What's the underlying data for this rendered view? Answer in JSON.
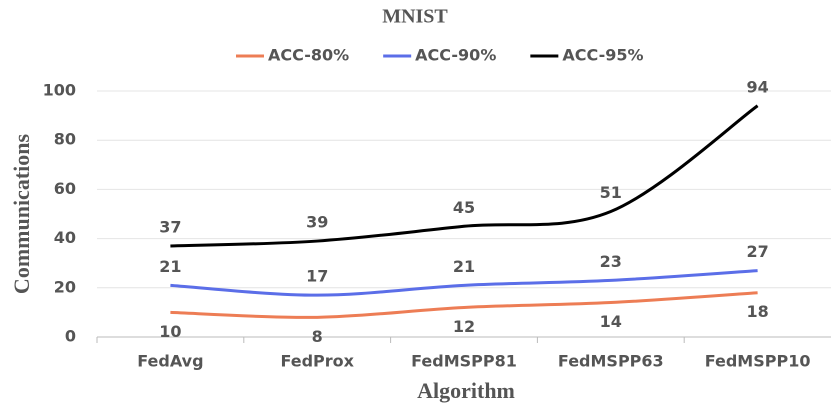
{
  "chart_data": {
    "type": "line",
    "title": "MNIST",
    "x_label": "Algorithm",
    "y_label": "Communications",
    "categories": [
      "FedAvg",
      "FedProx",
      "FedMSPP81",
      "FedMSPP63",
      "FedMSPP10"
    ],
    "series": [
      {
        "name": "ACC-80%",
        "color": "#ed7d55",
        "values": [
          10,
          8,
          12,
          14,
          18
        ]
      },
      {
        "name": "ACC-90%",
        "color": "#5b6ee8",
        "values": [
          21,
          17,
          21,
          23,
          27
        ]
      },
      {
        "name": "ACC-95%",
        "color": "#000000",
        "values": [
          37,
          39,
          45,
          51,
          94
        ]
      }
    ],
    "ylim": [
      0,
      100
    ],
    "yticks": [
      0,
      20,
      40,
      60,
      80,
      100
    ],
    "grid": true,
    "legend": "top",
    "smooth": true
  }
}
